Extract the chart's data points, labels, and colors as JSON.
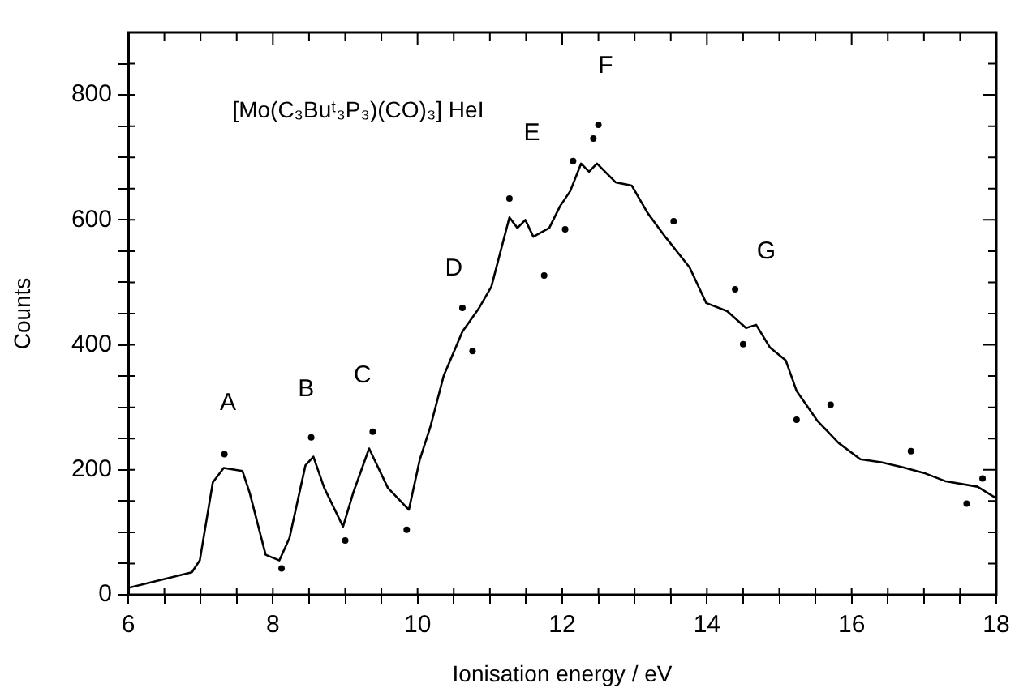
{
  "chart_data": {
    "type": "line",
    "xlabel": "Ionisation energy / eV",
    "ylabel": "Counts",
    "annotations": [
      "[Mo(C₃Buᵗ₃P₃)(CO)₃] HeI",
      "A",
      "B",
      "C",
      "D",
      "E",
      "F",
      "G"
    ],
    "xlim": [
      6,
      18
    ],
    "ylim": [
      0,
      900
    ],
    "xticks": [
      6,
      {
        "value": 6.5,
        "label": null
      },
      {
        "value": 7,
        "label": null
      },
      {
        "value": 7.5,
        "label": null
      },
      8,
      {
        "value": 8.5,
        "label": null
      },
      {
        "value": 9,
        "label": null
      },
      {
        "value": 9.5,
        "label": null
      },
      10,
      {
        "value": 10.5,
        "label": null
      },
      {
        "value": 11,
        "label": null
      },
      {
        "value": 11.5,
        "label": null
      },
      12,
      {
        "value": 12.5,
        "label": null
      },
      {
        "value": 13,
        "label": null
      },
      {
        "value": 13.5,
        "label": null
      },
      14,
      {
        "value": 14.5,
        "label": null
      },
      {
        "value": 15,
        "label": null
      },
      {
        "value": 15.5,
        "label": null
      },
      16,
      {
        "value": 16.5,
        "label": null
      },
      {
        "value": 17,
        "label": null
      },
      {
        "value": 17.5,
        "label": null
      },
      18
    ],
    "yticks": [
      0,
      {
        "value": 50,
        "label": null
      },
      {
        "value": 100,
        "label": null
      },
      {
        "value": 150,
        "label": null
      },
      200,
      {
        "value": 250,
        "label": null
      },
      {
        "value": 300,
        "label": null
      },
      {
        "value": 350,
        "label": null
      },
      400,
      {
        "value": 450,
        "label": null
      },
      {
        "value": 500,
        "label": null
      },
      {
        "value": 550,
        "label": null
      },
      600,
      {
        "value": 650,
        "label": null
      },
      {
        "value": 700,
        "label": null
      },
      {
        "value": 750,
        "label": null
      },
      800,
      {
        "value": 850,
        "label": null
      }
    ],
    "grid": false,
    "legend": false,
    "series": [
      {
        "type": "line",
        "color": "#000000",
        "marker": "none",
        "line_style": "solid",
        "x": [
          6.0,
          6.88,
          6.99,
          7.17,
          7.32,
          7.58,
          7.68,
          7.9,
          8.09,
          8.23,
          8.45,
          8.56,
          8.71,
          8.97,
          9.11,
          9.33,
          9.59,
          9.88,
          10.03,
          10.18,
          10.36,
          10.62,
          10.84,
          11.02,
          11.13,
          11.27,
          11.38,
          11.49,
          11.6,
          11.82,
          11.97,
          12.11,
          12.26,
          12.37,
          12.48,
          12.74,
          12.96,
          13.18,
          13.43,
          13.76,
          13.99,
          14.28,
          14.54,
          14.68,
          14.87,
          15.09,
          15.24,
          15.53,
          15.82,
          16.12,
          16.41,
          16.71,
          17.0,
          17.29,
          17.74,
          17.99
        ],
        "values": [
          11,
          36,
          55,
          180,
          203,
          198,
          163,
          64,
          55,
          91,
          207,
          221,
          171,
          109,
          163,
          234,
          171,
          136,
          216,
          270,
          350,
          421,
          457,
          493,
          542,
          604,
          587,
          600,
          573,
          587,
          622,
          646,
          690,
          677,
          690,
          660,
          655,
          611,
          572,
          524,
          467,
          454,
          427,
          432,
          396,
          375,
          326,
          278,
          243,
          217,
          212,
          204,
          195,
          182,
          173,
          155
        ]
      },
      {
        "type": "scatter",
        "color": "#000000",
        "marker": "circle",
        "x": [
          7.33,
          8.12,
          8.53,
          9.0,
          9.38,
          9.85,
          10.62,
          10.76,
          11.27,
          11.75,
          12.04,
          12.15,
          12.43,
          12.5,
          13.54,
          14.39,
          14.5,
          15.24,
          15.71,
          16.82,
          17.59,
          17.81
        ],
        "values": [
          225,
          42,
          252,
          87,
          261,
          104,
          459,
          390,
          634,
          511,
          585,
          694,
          730,
          752,
          598,
          489,
          401,
          280,
          304,
          230,
          146,
          186
        ]
      }
    ]
  }
}
